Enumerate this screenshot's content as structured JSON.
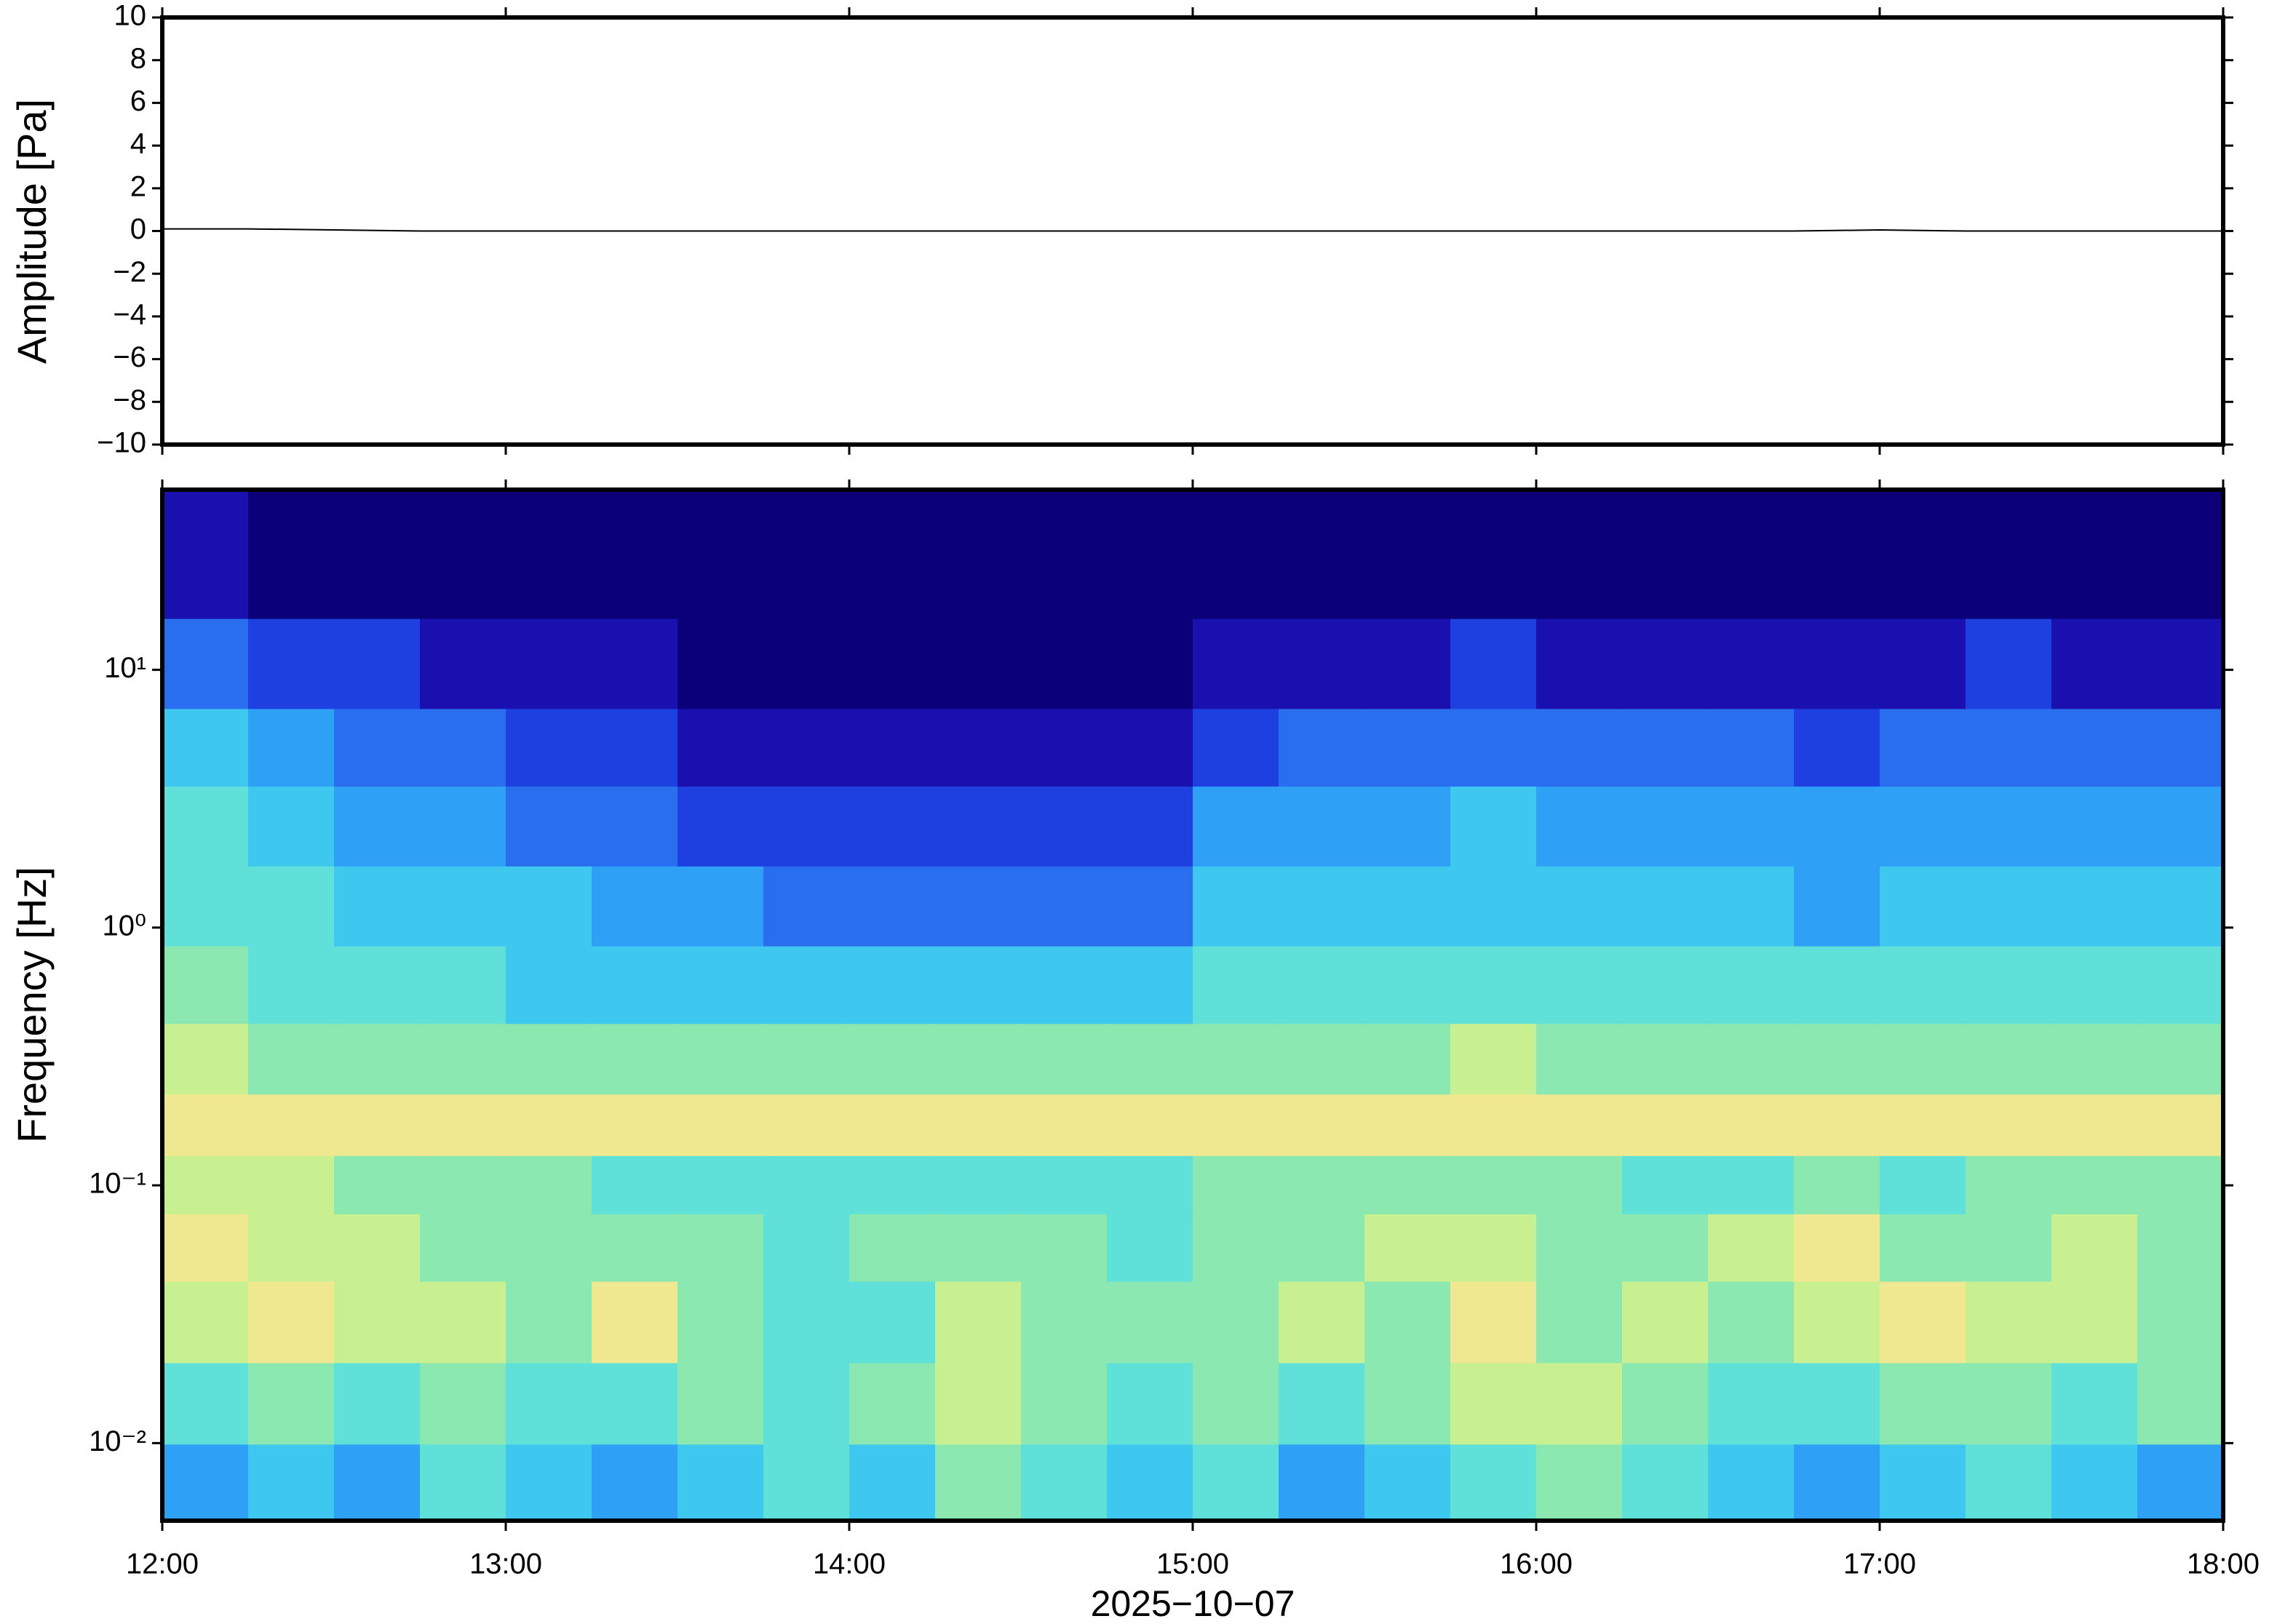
{
  "chart_data": [
    {
      "type": "line",
      "ylabel": "Amplitude [Pa]",
      "color": "#000000",
      "xlim": [
        "12:00",
        "18:00"
      ],
      "xticks": [
        "12:00",
        "13:00",
        "14:00",
        "15:00",
        "16:00",
        "17:00",
        "18:00"
      ],
      "ylim": [
        -10,
        10
      ],
      "yticks": [
        {
          "value": -10,
          "label": "−10"
        },
        {
          "value": -8,
          "label": "−8"
        },
        {
          "value": -6,
          "label": "−6"
        },
        {
          "value": -4,
          "label": "−4"
        },
        {
          "value": -2,
          "label": "−2"
        },
        0,
        2,
        4,
        6,
        8,
        10
      ],
      "x": [
        "12:00",
        "12:15",
        "12:30",
        "12:45",
        "13:00",
        "13:15",
        "13:30",
        "13:45",
        "14:00",
        "14:15",
        "14:30",
        "14:45",
        "15:00",
        "15:15",
        "15:30",
        "15:45",
        "16:00",
        "16:15",
        "16:30",
        "16:45",
        "17:00",
        "17:15",
        "17:30",
        "17:45",
        "18:00"
      ],
      "values": [
        0.1,
        0.1,
        0.05,
        0,
        0,
        0,
        0,
        0,
        0,
        0,
        0,
        0,
        0,
        0,
        0,
        0,
        0,
        0,
        0,
        0,
        0.05,
        0,
        0,
        0,
        0
      ]
    },
    {
      "type": "heatmap",
      "ylabel": "Frequency [Hz]",
      "xlabel": "2025−10−07",
      "ylog": true,
      "xlim": [
        "12:00",
        "18:00"
      ],
      "xticks": [
        "12:00",
        "13:00",
        "14:00",
        "15:00",
        "16:00",
        "17:00",
        "18:00"
      ],
      "ylim": [
        0.005,
        50
      ],
      "yticks": [
        {
          "value": 0.01,
          "label": "10⁻²"
        },
        {
          "value": 0.1,
          "label": "10⁻¹"
        },
        {
          "value": 1,
          "label": "10⁰"
        },
        {
          "value": 10,
          "label": "10¹"
        }
      ],
      "x": [
        "12:00",
        "12:15",
        "12:30",
        "12:45",
        "13:00",
        "13:15",
        "13:30",
        "13:45",
        "14:00",
        "14:15",
        "14:30",
        "14:45",
        "15:00",
        "15:15",
        "15:30",
        "15:45",
        "16:00",
        "16:15",
        "16:30",
        "16:45",
        "17:00",
        "17:15",
        "17:30",
        "17:45"
      ],
      "y": [
        0.007,
        0.014,
        0.03,
        0.06,
        0.1,
        0.17,
        0.3,
        0.6,
        1.2,
        2.5,
        5,
        10,
        25
      ],
      "z": [
        [
          4,
          5,
          4,
          6,
          5,
          4,
          5,
          6,
          5,
          7,
          6,
          5,
          6,
          4,
          5,
          6,
          7,
          6,
          5,
          4,
          5,
          6,
          5,
          4
        ],
        [
          6,
          7,
          6,
          7,
          6,
          6,
          7,
          6,
          7,
          8,
          7,
          6,
          7,
          6,
          7,
          8,
          8,
          7,
          6,
          6,
          7,
          7,
          6,
          7
        ],
        [
          8,
          9,
          8,
          8,
          7,
          9,
          7,
          6,
          6,
          8,
          7,
          7,
          7,
          8,
          7,
          9,
          7,
          8,
          7,
          8,
          9,
          8,
          8,
          7
        ],
        [
          9,
          8,
          8,
          7,
          7,
          7,
          7,
          6,
          7,
          7,
          7,
          6,
          7,
          7,
          8,
          8,
          7,
          7,
          8,
          9,
          7,
          7,
          8,
          7
        ],
        [
          8,
          8,
          7,
          7,
          7,
          6,
          6,
          6,
          6,
          6,
          6,
          6,
          7,
          7,
          7,
          7,
          7,
          6,
          6,
          7,
          6,
          7,
          7,
          7
        ],
        [
          9,
          9,
          9,
          9,
          9,
          9,
          9,
          9,
          9,
          9,
          9,
          9,
          9,
          9,
          9,
          9,
          9,
          9,
          9,
          9,
          9,
          9,
          9,
          9
        ],
        [
          8,
          7,
          7,
          7,
          7,
          7,
          7,
          7,
          7,
          7,
          7,
          7,
          7,
          7,
          7,
          8,
          7,
          7,
          7,
          7,
          7,
          7,
          7,
          7
        ],
        [
          7,
          6,
          6,
          6,
          5,
          5,
          5,
          5,
          5,
          5,
          5,
          5,
          6,
          6,
          6,
          6,
          6,
          6,
          6,
          6,
          6,
          6,
          6,
          6
        ],
        [
          6,
          6,
          5,
          5,
          5,
          4,
          4,
          3,
          3,
          3,
          3,
          3,
          5,
          5,
          5,
          5,
          5,
          5,
          5,
          4,
          5,
          5,
          5,
          5
        ],
        [
          6,
          5,
          4,
          4,
          3,
          3,
          2,
          2,
          2,
          2,
          2,
          2,
          4,
          4,
          4,
          5,
          4,
          4,
          4,
          4,
          4,
          4,
          4,
          4
        ],
        [
          5,
          4,
          3,
          3,
          2,
          2,
          1,
          1,
          1,
          1,
          1,
          1,
          2,
          3,
          3,
          3,
          3,
          3,
          3,
          2,
          3,
          3,
          3,
          3
        ],
        [
          3,
          2,
          2,
          1,
          1,
          1,
          0,
          0,
          0,
          0,
          0,
          0,
          1,
          1,
          1,
          2,
          1,
          1,
          1,
          1,
          1,
          2,
          1,
          1
        ],
        [
          1,
          0,
          0,
          0,
          0,
          0,
          0,
          0,
          0,
          0,
          0,
          0,
          0,
          0,
          0,
          0,
          0,
          0,
          0,
          0,
          0,
          0,
          0,
          0
        ]
      ],
      "colormap": [
        "#0b0078",
        "#1a10b0",
        "#1f40e0",
        "#2a6ef0",
        "#2ea0f5",
        "#3ec8f0",
        "#5fe0d8",
        "#8ae8b0",
        "#c8f090",
        "#f0e890",
        "#f5c878"
      ]
    }
  ]
}
